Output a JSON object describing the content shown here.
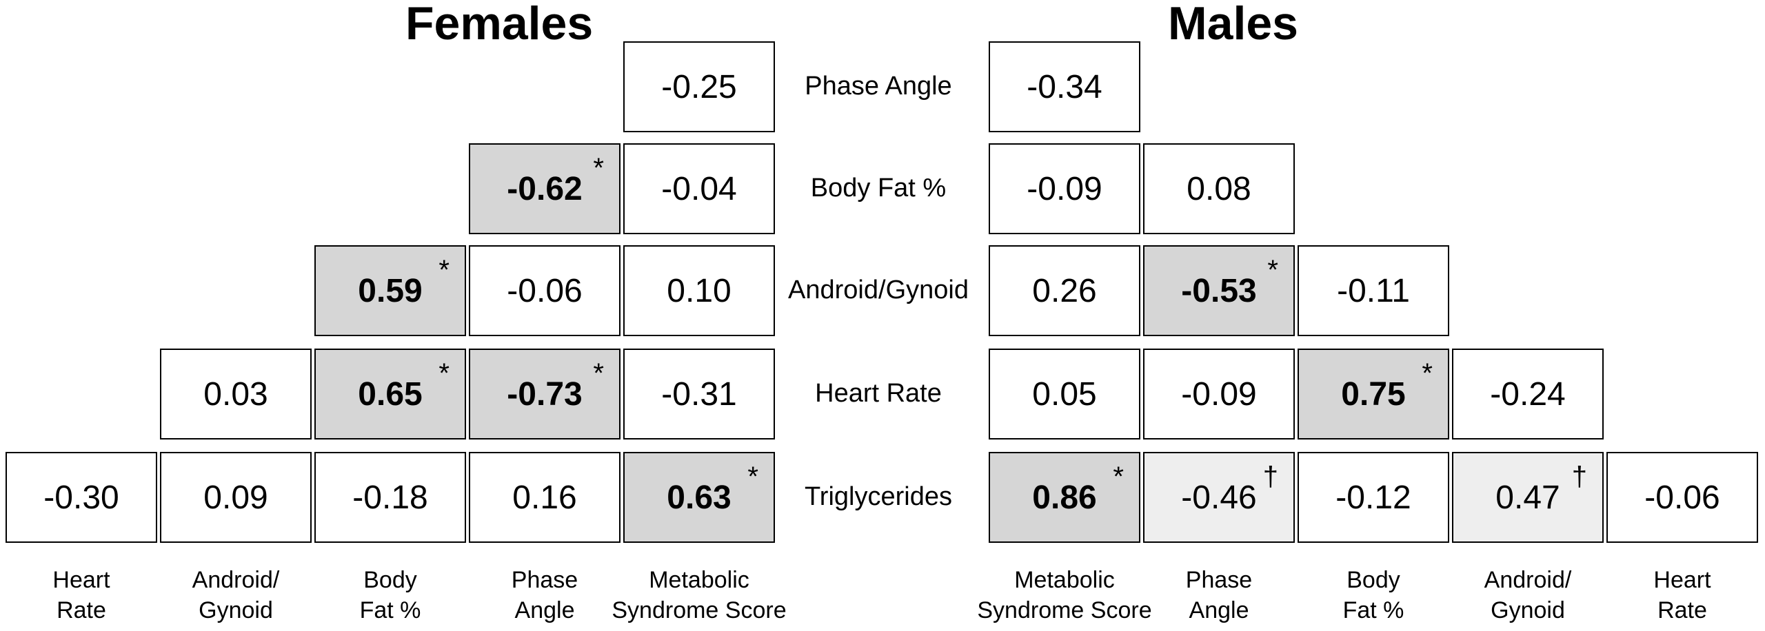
{
  "females": {
    "title": "Females",
    "column_labels": [
      "Heart\nRate",
      "Android/\nGynoid",
      "Body\nFat %",
      "Phase\nAngle",
      "Metabolic\nSyndrome Score"
    ]
  },
  "males": {
    "title": "Males",
    "column_labels": [
      "Metabolic\nSyndrome Score",
      "Phase\nAngle",
      "Body\nFat %",
      "Android/\nGynoid",
      "Heart\nRate"
    ]
  },
  "row_labels": [
    "Phase Angle",
    "Body Fat %",
    "Android/Gynoid",
    "Heart Rate",
    "Triglycerides"
  ],
  "chart_data": {
    "type": "table",
    "legend_marks": {
      "significant": "*",
      "trend": "†"
    },
    "colors": {
      "significant": "#d6d6d6",
      "trend": "#eeeeee",
      "normal": "#ffffff"
    },
    "females": [
      {
        "row": "Phase Angle",
        "cells": [
          {
            "col": "Metabolic Syndrome Score",
            "value": "-0.25",
            "mark": ""
          }
        ]
      },
      {
        "row": "Body Fat %",
        "cells": [
          {
            "col": "Phase Angle",
            "value": "-0.62",
            "mark": "*"
          },
          {
            "col": "Metabolic Syndrome Score",
            "value": "-0.04",
            "mark": ""
          }
        ]
      },
      {
        "row": "Android/Gynoid",
        "cells": [
          {
            "col": "Body Fat %",
            "value": "0.59",
            "mark": "*"
          },
          {
            "col": "Phase Angle",
            "value": "-0.06",
            "mark": ""
          },
          {
            "col": "Metabolic Syndrome Score",
            "value": "0.10",
            "mark": ""
          }
        ]
      },
      {
        "row": "Heart Rate",
        "cells": [
          {
            "col": "Android/Gynoid",
            "value": "0.03",
            "mark": ""
          },
          {
            "col": "Body Fat %",
            "value": "0.65",
            "mark": "*"
          },
          {
            "col": "Phase Angle",
            "value": "-0.73",
            "mark": "*"
          },
          {
            "col": "Metabolic Syndrome Score",
            "value": "-0.31",
            "mark": ""
          }
        ]
      },
      {
        "row": "Triglycerides",
        "cells": [
          {
            "col": "Heart Rate",
            "value": "-0.30",
            "mark": ""
          },
          {
            "col": "Android/Gynoid",
            "value": "0.09",
            "mark": ""
          },
          {
            "col": "Body Fat %",
            "value": "-0.18",
            "mark": ""
          },
          {
            "col": "Phase Angle",
            "value": "0.16",
            "mark": ""
          },
          {
            "col": "Metabolic Syndrome Score",
            "value": "0.63",
            "mark": "*"
          }
        ]
      }
    ],
    "males": [
      {
        "row": "Phase Angle",
        "cells": [
          {
            "col": "Metabolic Syndrome Score",
            "value": "-0.34",
            "mark": ""
          }
        ]
      },
      {
        "row": "Body Fat %",
        "cells": [
          {
            "col": "Metabolic Syndrome Score",
            "value": "-0.09",
            "mark": ""
          },
          {
            "col": "Phase Angle",
            "value": "0.08",
            "mark": ""
          }
        ]
      },
      {
        "row": "Android/Gynoid",
        "cells": [
          {
            "col": "Metabolic Syndrome Score",
            "value": "0.26",
            "mark": ""
          },
          {
            "col": "Phase Angle",
            "value": "-0.53",
            "mark": "*"
          },
          {
            "col": "Body Fat %",
            "value": "-0.11",
            "mark": ""
          }
        ]
      },
      {
        "row": "Heart Rate",
        "cells": [
          {
            "col": "Metabolic Syndrome Score",
            "value": "0.05",
            "mark": ""
          },
          {
            "col": "Phase Angle",
            "value": "-0.09",
            "mark": ""
          },
          {
            "col": "Body Fat %",
            "value": "0.75",
            "mark": "*"
          },
          {
            "col": "Android/Gynoid",
            "value": "-0.24",
            "mark": ""
          }
        ]
      },
      {
        "row": "Triglycerides",
        "cells": [
          {
            "col": "Metabolic Syndrome Score",
            "value": "0.86",
            "mark": "*"
          },
          {
            "col": "Phase Angle",
            "value": "-0.46",
            "mark": "†"
          },
          {
            "col": "Body Fat %",
            "value": "-0.12",
            "mark": ""
          },
          {
            "col": "Android/Gynoid",
            "value": "0.47",
            "mark": "†"
          },
          {
            "col": "Heart Rate",
            "value": "-0.06",
            "mark": ""
          }
        ]
      }
    ]
  }
}
